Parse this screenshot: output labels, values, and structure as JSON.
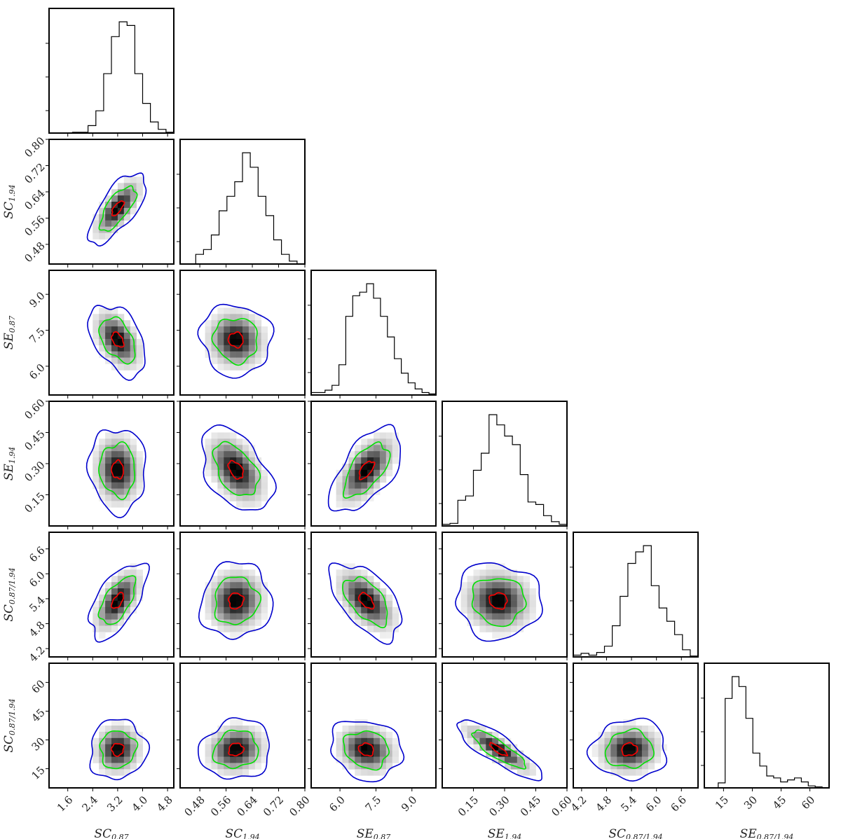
{
  "chart_data": {
    "type": "corner",
    "colors": {
      "frame": "#000000",
      "hist": "#000000",
      "density": "#000000",
      "contour_inner": "#ff0000",
      "contour_mid": "#00e000",
      "contour_outer": "#0000cc"
    },
    "variables": [
      {
        "key": "SC087",
        "label": "SC",
        "label_sub": "0.87",
        "range": [
          1.0,
          5.0
        ],
        "ticks": [
          1.6,
          2.4,
          3.2,
          4.0,
          4.8
        ],
        "tick_labels": [
          "1.6",
          "2.4",
          "3.2",
          "4.0",
          "4.8"
        ],
        "mean": 3.2,
        "sd": 0.38,
        "hist_counts": [
          0,
          0,
          0,
          1,
          1,
          10,
          30,
          80,
          130,
          150,
          145,
          80,
          40,
          15,
          5,
          1
        ]
      },
      {
        "key": "SC194",
        "label": "SC",
        "label_sub": "1.94",
        "range": [
          0.42,
          0.8
        ],
        "ticks": [
          0.48,
          0.56,
          0.64,
          0.72,
          0.8
        ],
        "tick_labels": [
          "0.48",
          "0.56",
          "0.64",
          "0.72",
          "0.80"
        ],
        "y_tick_labels": [
          "0.48",
          "0.56",
          "0.64",
          "0.72",
          "0.80"
        ],
        "mean": 0.59,
        "sd": 0.045,
        "hist_counts": [
          0,
          0,
          10,
          15,
          30,
          55,
          70,
          85,
          115,
          100,
          70,
          50,
          25,
          10,
          3,
          0
        ]
      },
      {
        "key": "SE087",
        "label": "SE",
        "label_sub": "0.87",
        "range": [
          4.8,
          10.0
        ],
        "ticks": [
          6.0,
          7.5,
          9.0
        ],
        "tick_labels": [
          "6.0",
          "7.5",
          "9.0"
        ],
        "mean": 7.1,
        "sd": 0.62,
        "hist_counts": [
          2,
          2,
          4,
          8,
          25,
          65,
          82,
          85,
          92,
          80,
          65,
          48,
          30,
          18,
          10,
          5,
          2,
          1
        ]
      },
      {
        "key": "SE194",
        "label": "SE",
        "label_sub": "1.94",
        "range": [
          0.0,
          0.6
        ],
        "ticks": [
          0.15,
          0.3,
          0.45,
          0.6
        ],
        "tick_labels": [
          "0.15",
          "0.30",
          "0.45",
          "0.60"
        ],
        "mean": 0.27,
        "sd": 0.085,
        "hist_counts": [
          2,
          3,
          30,
          35,
          65,
          85,
          130,
          118,
          105,
          95,
          60,
          28,
          25,
          12,
          5,
          2
        ]
      },
      {
        "key": "SC087_194",
        "label": "SC",
        "label_sub": "0.87/1.94",
        "range": [
          4.0,
          7.0
        ],
        "ticks": [
          4.2,
          4.8,
          5.4,
          6.0,
          6.6
        ],
        "tick_labels": [
          "4.2",
          "4.8",
          "5.4",
          "6.0",
          "6.6"
        ],
        "mean": 5.35,
        "sd": 0.38,
        "hist_counts": [
          2,
          4,
          2,
          5,
          12,
          35,
          68,
          105,
          118,
          125,
          80,
          55,
          40,
          25,
          8,
          1
        ]
      },
      {
        "key": "SE087_194",
        "label": "SE",
        "label_sub": "0.87/1.94",
        "y_label": "SC",
        "range": [
          5.0,
          70.0
        ],
        "ticks": [
          15,
          30,
          45,
          60
        ],
        "tick_labels": [
          "15",
          "30",
          "45",
          "60"
        ],
        "mean": 25,
        "sd": 6.5,
        "hist_counts": [
          0,
          0,
          5,
          90,
          112,
          102,
          70,
          35,
          22,
          12,
          10,
          6,
          8,
          10,
          6,
          2,
          1,
          0
        ]
      }
    ],
    "correlations": [
      [
        1,
        0.7,
        -0.45,
        -0.05,
        0.6,
        0.05
      ],
      [
        0.7,
        1,
        -0.05,
        -0.45,
        0.05,
        0.1
      ],
      [
        -0.45,
        -0.05,
        1,
        0.6,
        -0.55,
        -0.15
      ],
      [
        -0.05,
        -0.45,
        0.6,
        1,
        -0.05,
        -0.85
      ],
      [
        0.6,
        0.05,
        -0.55,
        -0.05,
        1,
        0.05
      ],
      [
        0.05,
        0.1,
        -0.15,
        -0.85,
        0.05,
        1
      ]
    ],
    "contour_levels_sigma": [
      0.5,
      1.5,
      2.4
    ]
  }
}
